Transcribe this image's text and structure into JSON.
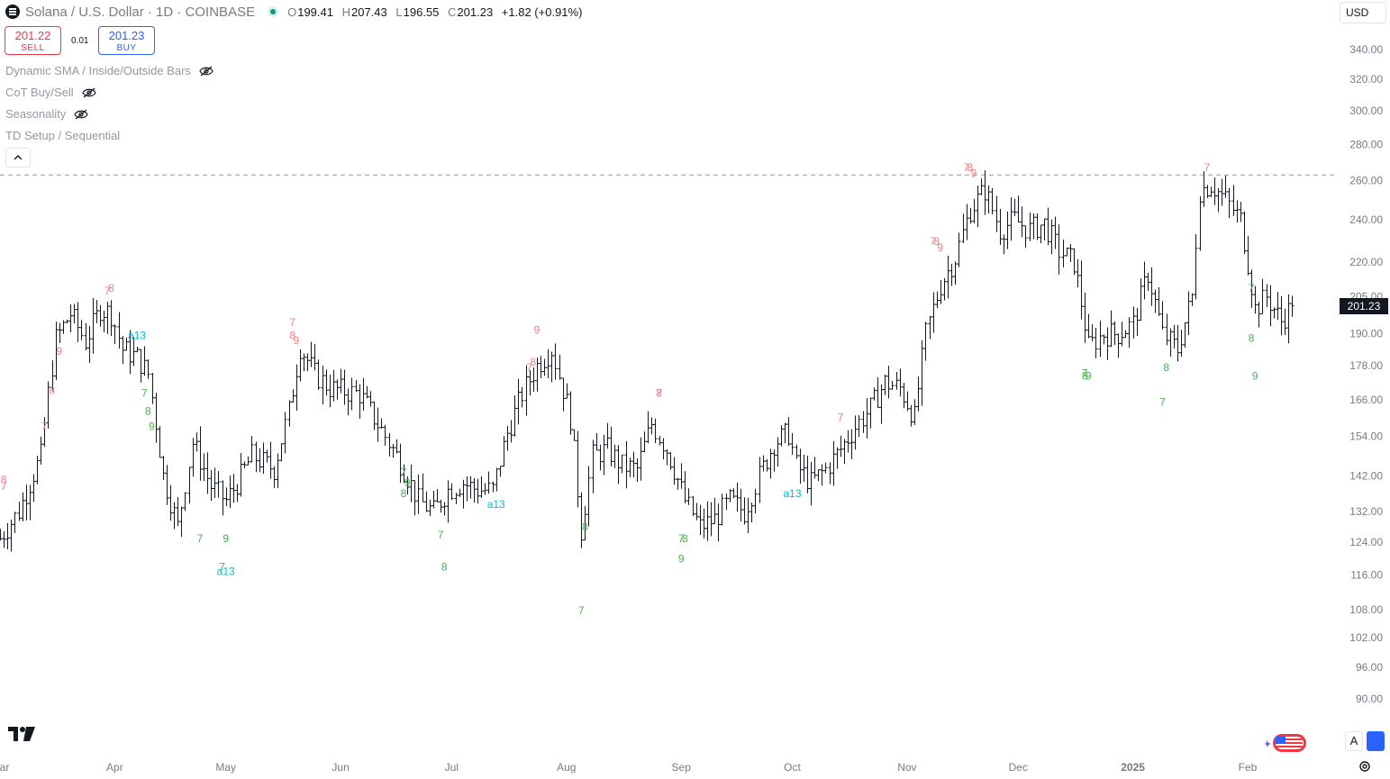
{
  "header": {
    "symbol": "Solana / U.S. Dollar · 1D · COINBASE",
    "ohlc": {
      "o_key": "O",
      "o": "199.41",
      "h_key": "H",
      "h": "207.43",
      "l_key": "L",
      "l": "196.55",
      "c_key": "C",
      "c": "201.23",
      "change": "+1.82 (+0.91%)"
    }
  },
  "trading": {
    "sell_price": "201.22",
    "sell_label": "SELL",
    "spread": "0.01",
    "buy_price": "201.23",
    "buy_label": "BUY"
  },
  "indicators": [
    {
      "name": "Dynamic SMA / Inside/Outside Bars",
      "hidden": true
    },
    {
      "name": "CoT Buy/Sell",
      "hidden": true
    },
    {
      "name": "Seasonality",
      "hidden": true
    },
    {
      "name": "TD Setup / Sequential",
      "hidden": false
    }
  ],
  "currency": "USD",
  "current_price_label": "201.23",
  "colors": {
    "bars": "#131722",
    "sell": "#f23645",
    "td_sell": "#f77c80",
    "td_buy": "#4caf50",
    "td_aggr": "#00bcd4",
    "buy_accent": "#2962ff",
    "axis_text": "#787b86"
  },
  "chart_data": {
    "type": "ohlc",
    "title": "Solana / U.S. Dollar · 1D · COINBASE",
    "y_scale": "log",
    "ylim": [
      87,
      360
    ],
    "y_ticks": [
      90,
      96,
      102,
      108,
      116,
      124,
      132,
      142,
      154,
      166,
      178,
      190,
      205,
      220,
      240,
      260,
      280,
      300,
      320,
      340
    ],
    "y_tick_labels": [
      "90.00",
      "96.00",
      "102.00",
      "108.00",
      "116.00",
      "124.00",
      "132.00",
      "142.00",
      "154.00",
      "166.00",
      "178.00",
      "190.00",
      "205.00",
      "220.00",
      "240.00",
      "260.00",
      "280.00",
      "300.00",
      "320.00",
      "340.00"
    ],
    "x_range": [
      "2024-03-01",
      "2025-02-18"
    ],
    "x_ticks": [
      {
        "date": "2024-03-01",
        "label": "Mar"
      },
      {
        "date": "2024-04-01",
        "label": "Apr"
      },
      {
        "date": "2024-05-01",
        "label": "May"
      },
      {
        "date": "2024-06-01",
        "label": "Jun"
      },
      {
        "date": "2024-07-01",
        "label": "Jul"
      },
      {
        "date": "2024-08-01",
        "label": "Aug"
      },
      {
        "date": "2024-09-01",
        "label": "Sep"
      },
      {
        "date": "2024-10-01",
        "label": "Oct"
      },
      {
        "date": "2024-11-01",
        "label": "Nov"
      },
      {
        "date": "2024-12-01",
        "label": "Dec"
      },
      {
        "date": "2025-01-01",
        "label": "2025"
      },
      {
        "date": "2025-02-01",
        "label": "Feb"
      }
    ],
    "key_level": 263,
    "last_close": 201.23,
    "close_path": [
      [
        "2024-03-01",
        125
      ],
      [
        "2024-03-06",
        132
      ],
      [
        "2024-03-12",
        148
      ],
      [
        "2024-03-16",
        188
      ],
      [
        "2024-03-20",
        198
      ],
      [
        "2024-03-24",
        187
      ],
      [
        "2024-03-28",
        200
      ],
      [
        "2024-03-31",
        198
      ],
      [
        "2024-04-03",
        184
      ],
      [
        "2024-04-07",
        181
      ],
      [
        "2024-04-10",
        175
      ],
      [
        "2024-04-14",
        142
      ],
      [
        "2024-04-18",
        128
      ],
      [
        "2024-04-22",
        152
      ],
      [
        "2024-04-27",
        139
      ],
      [
        "2024-05-01",
        135
      ],
      [
        "2024-05-04",
        140
      ],
      [
        "2024-05-08",
        148
      ],
      [
        "2024-05-14",
        144
      ],
      [
        "2024-05-18",
        162
      ],
      [
        "2024-05-21",
        185
      ],
      [
        "2024-05-25",
        175
      ],
      [
        "2024-05-29",
        170
      ],
      [
        "2024-06-02",
        169
      ],
      [
        "2024-06-06",
        168
      ],
      [
        "2024-06-10",
        160
      ],
      [
        "2024-06-14",
        152
      ],
      [
        "2024-06-18",
        144
      ],
      [
        "2024-06-22",
        135
      ],
      [
        "2024-06-26",
        132
      ],
      [
        "2024-06-30",
        138
      ],
      [
        "2024-07-04",
        140
      ],
      [
        "2024-07-08",
        138
      ],
      [
        "2024-07-12",
        138
      ],
      [
        "2024-07-16",
        155
      ],
      [
        "2024-07-20",
        168
      ],
      [
        "2024-07-24",
        178
      ],
      [
        "2024-07-28",
        184
      ],
      [
        "2024-08-02",
        160
      ],
      [
        "2024-08-05",
        127
      ],
      [
        "2024-08-08",
        148
      ],
      [
        "2024-08-12",
        150
      ],
      [
        "2024-08-16",
        145
      ],
      [
        "2024-08-20",
        144
      ],
      [
        "2024-08-24",
        158
      ],
      [
        "2024-08-28",
        150
      ],
      [
        "2024-09-02",
        135
      ],
      [
        "2024-09-06",
        128
      ],
      [
        "2024-09-10",
        130
      ],
      [
        "2024-09-14",
        135
      ],
      [
        "2024-09-18",
        132
      ],
      [
        "2024-09-22",
        142
      ],
      [
        "2024-09-26",
        152
      ],
      [
        "2024-09-30",
        155
      ],
      [
        "2024-10-02",
        145
      ],
      [
        "2024-10-06",
        140
      ],
      [
        "2024-10-10",
        144
      ],
      [
        "2024-10-14",
        150
      ],
      [
        "2024-10-18",
        157
      ],
      [
        "2024-10-22",
        163
      ],
      [
        "2024-10-26",
        172
      ],
      [
        "2024-10-30",
        170
      ],
      [
        "2024-11-03",
        160
      ],
      [
        "2024-11-06",
        190
      ],
      [
        "2024-11-10",
        210
      ],
      [
        "2024-11-14",
        222
      ],
      [
        "2024-11-18",
        245
      ],
      [
        "2024-11-22",
        255
      ],
      [
        "2024-11-26",
        235
      ],
      [
        "2024-11-30",
        240
      ],
      [
        "2024-12-04",
        235
      ],
      [
        "2024-12-08",
        238
      ],
      [
        "2024-12-12",
        225
      ],
      [
        "2024-12-16",
        220
      ],
      [
        "2024-12-20",
        185
      ],
      [
        "2024-12-24",
        190
      ],
      [
        "2024-12-28",
        190
      ],
      [
        "2025-01-01",
        194
      ],
      [
        "2025-01-05",
        215
      ],
      [
        "2025-01-09",
        190
      ],
      [
        "2025-01-13",
        184
      ],
      [
        "2025-01-17",
        205
      ],
      [
        "2025-01-19",
        255
      ],
      [
        "2025-01-22",
        258
      ],
      [
        "2025-01-26",
        250
      ],
      [
        "2025-01-30",
        240
      ],
      [
        "2025-02-03",
        200
      ],
      [
        "2025-02-06",
        205
      ],
      [
        "2025-02-10",
        195
      ],
      [
        "2025-02-13",
        201.23
      ]
    ],
    "td_labels": [
      {
        "date": "2024-03-02",
        "price": 138,
        "text": "7",
        "kind": "sell"
      },
      {
        "date": "2024-03-02",
        "price": 140,
        "text": "8",
        "kind": "sell"
      },
      {
        "date": "2024-03-13",
        "price": 156,
        "text": "7",
        "kind": "sell"
      },
      {
        "date": "2024-03-15",
        "price": 168,
        "text": "8",
        "kind": "sell"
      },
      {
        "date": "2024-03-17",
        "price": 182,
        "text": "9",
        "kind": "sell"
      },
      {
        "date": "2024-03-30",
        "price": 206,
        "text": "7",
        "kind": "sell"
      },
      {
        "date": "2024-03-31",
        "price": 207,
        "text": "8",
        "kind": "sell"
      },
      {
        "date": "2024-04-07",
        "price": 188,
        "text": "a13",
        "kind": "aggr"
      },
      {
        "date": "2024-04-09",
        "price": 167,
        "text": "7",
        "kind": "buy"
      },
      {
        "date": "2024-04-10",
        "price": 161,
        "text": "8",
        "kind": "buy"
      },
      {
        "date": "2024-04-11",
        "price": 156,
        "text": "9",
        "kind": "buy"
      },
      {
        "date": "2024-04-24",
        "price": 124,
        "text": "7",
        "kind": "buy"
      },
      {
        "date": "2024-05-01",
        "price": 116,
        "text": "a13",
        "kind": "aggr"
      },
      {
        "date": "2024-04-30",
        "price": 117,
        "text": "7",
        "kind": "buy"
      },
      {
        "date": "2024-05-01",
        "price": 124,
        "text": "9",
        "kind": "buy"
      },
      {
        "date": "2024-05-19",
        "price": 193,
        "text": "7",
        "kind": "sell"
      },
      {
        "date": "2024-05-19",
        "price": 188,
        "text": "8",
        "kind": "sell"
      },
      {
        "date": "2024-05-20",
        "price": 186,
        "text": "9",
        "kind": "sell"
      },
      {
        "date": "2024-06-18",
        "price": 142,
        "text": "7",
        "kind": "buy"
      },
      {
        "date": "2024-06-19",
        "price": 139,
        "text": "9",
        "kind": "buy"
      },
      {
        "date": "2024-06-18",
        "price": 136,
        "text": "8",
        "kind": "buy"
      },
      {
        "date": "2024-06-28",
        "price": 125,
        "text": "7",
        "kind": "buy"
      },
      {
        "date": "2024-06-29",
        "price": 117,
        "text": "8",
        "kind": "buy"
      },
      {
        "date": "2024-07-13",
        "price": 133,
        "text": "a13",
        "kind": "aggr"
      },
      {
        "date": "2024-07-22",
        "price": 176,
        "text": "7",
        "kind": "sell"
      },
      {
        "date": "2024-07-23",
        "price": 178,
        "text": "8",
        "kind": "sell"
      },
      {
        "date": "2024-07-24",
        "price": 190,
        "text": "9",
        "kind": "sell"
      },
      {
        "date": "2024-08-05",
        "price": 107,
        "text": "7",
        "kind": "buy"
      },
      {
        "date": "2024-08-06",
        "price": 127,
        "text": "8",
        "kind": "buy"
      },
      {
        "date": "2024-08-26",
        "price": 167,
        "text": "7",
        "kind": "sell"
      },
      {
        "date": "2024-08-26",
        "price": 167,
        "text": "8",
        "kind": "sell"
      },
      {
        "date": "2024-09-01",
        "price": 124,
        "text": "7",
        "kind": "buy"
      },
      {
        "date": "2024-09-02",
        "price": 124,
        "text": "8",
        "kind": "buy"
      },
      {
        "date": "2024-09-01",
        "price": 119,
        "text": "9",
        "kind": "buy"
      },
      {
        "date": "2024-10-01",
        "price": 136,
        "text": "a13",
        "kind": "aggr"
      },
      {
        "date": "2024-10-14",
        "price": 159,
        "text": "7",
        "kind": "sell"
      },
      {
        "date": "2024-11-17",
        "price": 265,
        "text": "7",
        "kind": "sell"
      },
      {
        "date": "2024-11-18",
        "price": 265,
        "text": "8",
        "kind": "sell"
      },
      {
        "date": "2024-11-19",
        "price": 262,
        "text": "9",
        "kind": "sell"
      },
      {
        "date": "2024-11-08",
        "price": 228,
        "text": "7",
        "kind": "sell"
      },
      {
        "date": "2024-11-09",
        "price": 228,
        "text": "8",
        "kind": "sell"
      },
      {
        "date": "2024-11-10",
        "price": 225,
        "text": "9",
        "kind": "sell"
      },
      {
        "date": "2024-12-19",
        "price": 174,
        "text": "7",
        "kind": "buy"
      },
      {
        "date": "2024-12-19",
        "price": 173,
        "text": "8",
        "kind": "buy"
      },
      {
        "date": "2024-12-20",
        "price": 173,
        "text": "9",
        "kind": "buy"
      },
      {
        "date": "2025-01-09",
        "price": 164,
        "text": "7",
        "kind": "buy"
      },
      {
        "date": "2025-01-10",
        "price": 176,
        "text": "8",
        "kind": "buy"
      },
      {
        "date": "2025-01-21",
        "price": 265,
        "text": "7",
        "kind": "sell"
      },
      {
        "date": "2025-02-02",
        "price": 207,
        "text": "7",
        "kind": "buy"
      },
      {
        "date": "2025-02-02",
        "price": 187,
        "text": "8",
        "kind": "buy"
      },
      {
        "date": "2025-02-03",
        "price": 173,
        "text": "9",
        "kind": "buy"
      }
    ]
  }
}
